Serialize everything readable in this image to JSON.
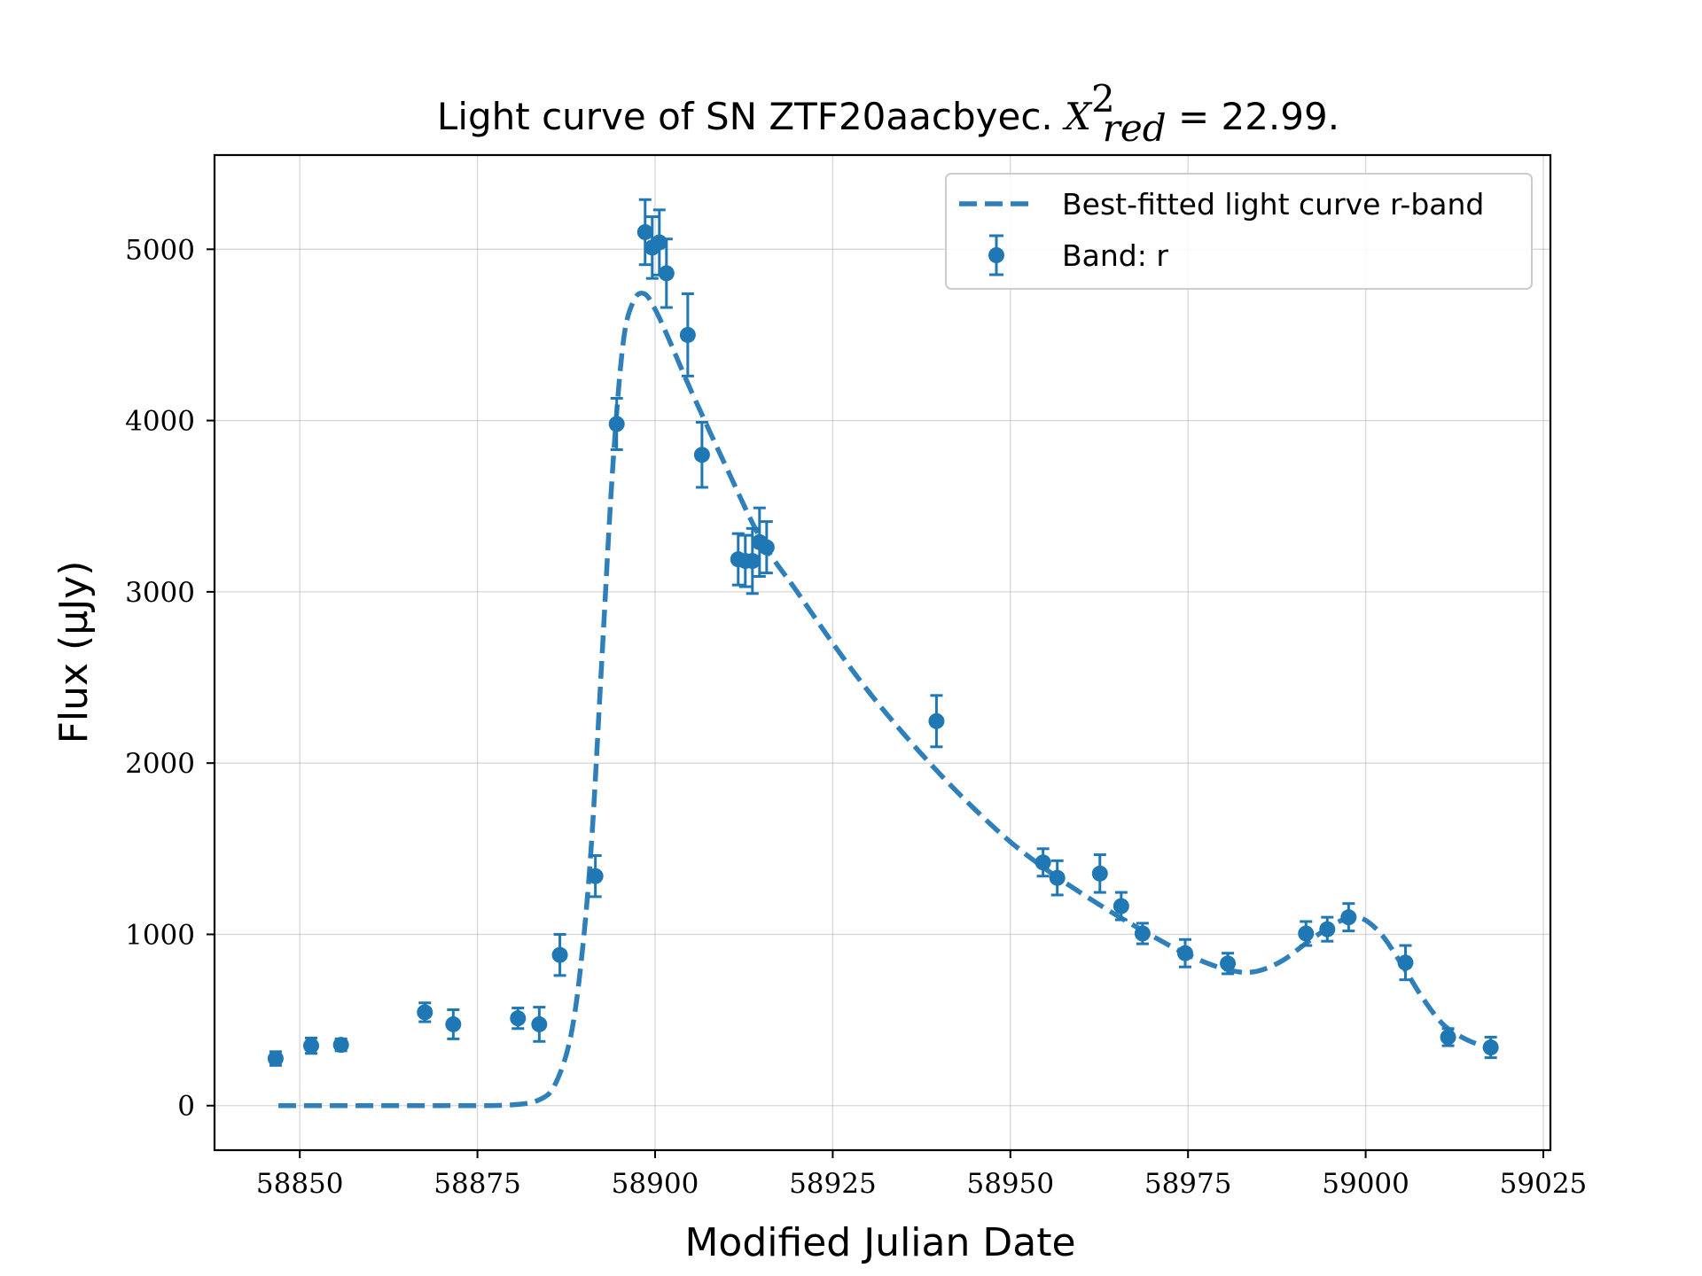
{
  "chart_data": {
    "type": "scatter",
    "title": {
      "prefix": "Light curve of SN ZTF20aacbyec. ",
      "math_base": "X",
      "math_sup": "2",
      "math_sub": "red",
      "suffix": " = 22.99."
    },
    "xlabel": "Modified Julian Date",
    "ylabel": "Flux (μJy)",
    "xlim": [
      58838,
      59026
    ],
    "ylim": [
      -260,
      5550
    ],
    "xticks": [
      58850,
      58875,
      58900,
      58925,
      58950,
      58975,
      59000,
      59025
    ],
    "yticks": [
      0,
      1000,
      2000,
      3000,
      4000,
      5000
    ],
    "grid": true,
    "legend_position": "upper right",
    "colors": {
      "series": "#1f77b4",
      "fit": "#2f7fbb"
    },
    "legend": [
      {
        "label": "Best-fitted light curve r-band",
        "kind": "dashed-line"
      },
      {
        "label": "Band: r",
        "kind": "errorbar-marker"
      }
    ],
    "series": [
      {
        "name": "Band: r",
        "kind": "errorbar",
        "points": [
          {
            "x": 58846.6,
            "y": 275,
            "err": 40
          },
          {
            "x": 58851.6,
            "y": 350,
            "err": 45
          },
          {
            "x": 58855.8,
            "y": 355,
            "err": 35
          },
          {
            "x": 58867.6,
            "y": 545,
            "err": 55
          },
          {
            "x": 58871.6,
            "y": 475,
            "err": 85
          },
          {
            "x": 58880.7,
            "y": 510,
            "err": 60
          },
          {
            "x": 58883.7,
            "y": 475,
            "err": 100
          },
          {
            "x": 58886.6,
            "y": 880,
            "err": 120
          },
          {
            "x": 58891.6,
            "y": 1340,
            "err": 120
          },
          {
            "x": 58894.6,
            "y": 3980,
            "err": 150
          },
          {
            "x": 58898.6,
            "y": 5100,
            "err": 190
          },
          {
            "x": 58899.6,
            "y": 5010,
            "err": 180
          },
          {
            "x": 58900.6,
            "y": 5040,
            "err": 190
          },
          {
            "x": 58901.6,
            "y": 4860,
            "err": 200
          },
          {
            "x": 58904.6,
            "y": 4500,
            "err": 240
          },
          {
            "x": 58906.6,
            "y": 3800,
            "err": 190
          },
          {
            "x": 58911.7,
            "y": 3190,
            "err": 150
          },
          {
            "x": 58912.7,
            "y": 3180,
            "err": 150
          },
          {
            "x": 58913.7,
            "y": 3180,
            "err": 190
          },
          {
            "x": 58914.7,
            "y": 3290,
            "err": 200
          },
          {
            "x": 58915.7,
            "y": 3260,
            "err": 150
          },
          {
            "x": 58939.6,
            "y": 2245,
            "err": 150
          },
          {
            "x": 58954.6,
            "y": 1420,
            "err": 80
          },
          {
            "x": 58956.6,
            "y": 1330,
            "err": 100
          },
          {
            "x": 58962.6,
            "y": 1355,
            "err": 110
          },
          {
            "x": 58965.6,
            "y": 1165,
            "err": 80
          },
          {
            "x": 58968.6,
            "y": 1005,
            "err": 60
          },
          {
            "x": 58974.6,
            "y": 890,
            "err": 80
          },
          {
            "x": 58980.6,
            "y": 830,
            "err": 60
          },
          {
            "x": 58991.6,
            "y": 1005,
            "err": 70
          },
          {
            "x": 58994.6,
            "y": 1030,
            "err": 70
          },
          {
            "x": 58997.6,
            "y": 1100,
            "err": 80
          },
          {
            "x": 59005.6,
            "y": 835,
            "err": 100
          },
          {
            "x": 59011.6,
            "y": 400,
            "err": 50
          },
          {
            "x": 59017.6,
            "y": 340,
            "err": 60
          }
        ]
      },
      {
        "name": "Best-fitted light curve r-band",
        "kind": "dashed-line",
        "points": [
          {
            "x": 58847,
            "y": 0
          },
          {
            "x": 58870,
            "y": 0
          },
          {
            "x": 58880,
            "y": 5
          },
          {
            "x": 58884,
            "y": 40
          },
          {
            "x": 58886,
            "y": 130
          },
          {
            "x": 58888,
            "y": 380
          },
          {
            "x": 58889.5,
            "y": 800
          },
          {
            "x": 58891,
            "y": 1500
          },
          {
            "x": 58892.5,
            "y": 2600
          },
          {
            "x": 58894,
            "y": 3700
          },
          {
            "x": 58895.5,
            "y": 4450
          },
          {
            "x": 58897,
            "y": 4700
          },
          {
            "x": 58898.5,
            "y": 4740
          },
          {
            "x": 58900,
            "y": 4650
          },
          {
            "x": 58902,
            "y": 4470
          },
          {
            "x": 58905,
            "y": 4180
          },
          {
            "x": 58910,
            "y": 3730
          },
          {
            "x": 58915,
            "y": 3300
          },
          {
            "x": 58920,
            "y": 3000
          },
          {
            "x": 58925,
            "y": 2700
          },
          {
            "x": 58930,
            "y": 2420
          },
          {
            "x": 58935,
            "y": 2170
          },
          {
            "x": 58940,
            "y": 1940
          },
          {
            "x": 58945,
            "y": 1730
          },
          {
            "x": 58950,
            "y": 1540
          },
          {
            "x": 58955,
            "y": 1380
          },
          {
            "x": 58960,
            "y": 1240
          },
          {
            "x": 58965,
            "y": 1110
          },
          {
            "x": 58970,
            "y": 990
          },
          {
            "x": 58975,
            "y": 880
          },
          {
            "x": 58980,
            "y": 800
          },
          {
            "x": 58984,
            "y": 780
          },
          {
            "x": 58988,
            "y": 840
          },
          {
            "x": 58992,
            "y": 960
          },
          {
            "x": 58996,
            "y": 1070
          },
          {
            "x": 58999,
            "y": 1100
          },
          {
            "x": 59002,
            "y": 1010
          },
          {
            "x": 59005,
            "y": 830
          },
          {
            "x": 59008,
            "y": 630
          },
          {
            "x": 59011,
            "y": 470
          },
          {
            "x": 59014,
            "y": 390
          },
          {
            "x": 59017,
            "y": 340
          }
        ]
      }
    ]
  }
}
